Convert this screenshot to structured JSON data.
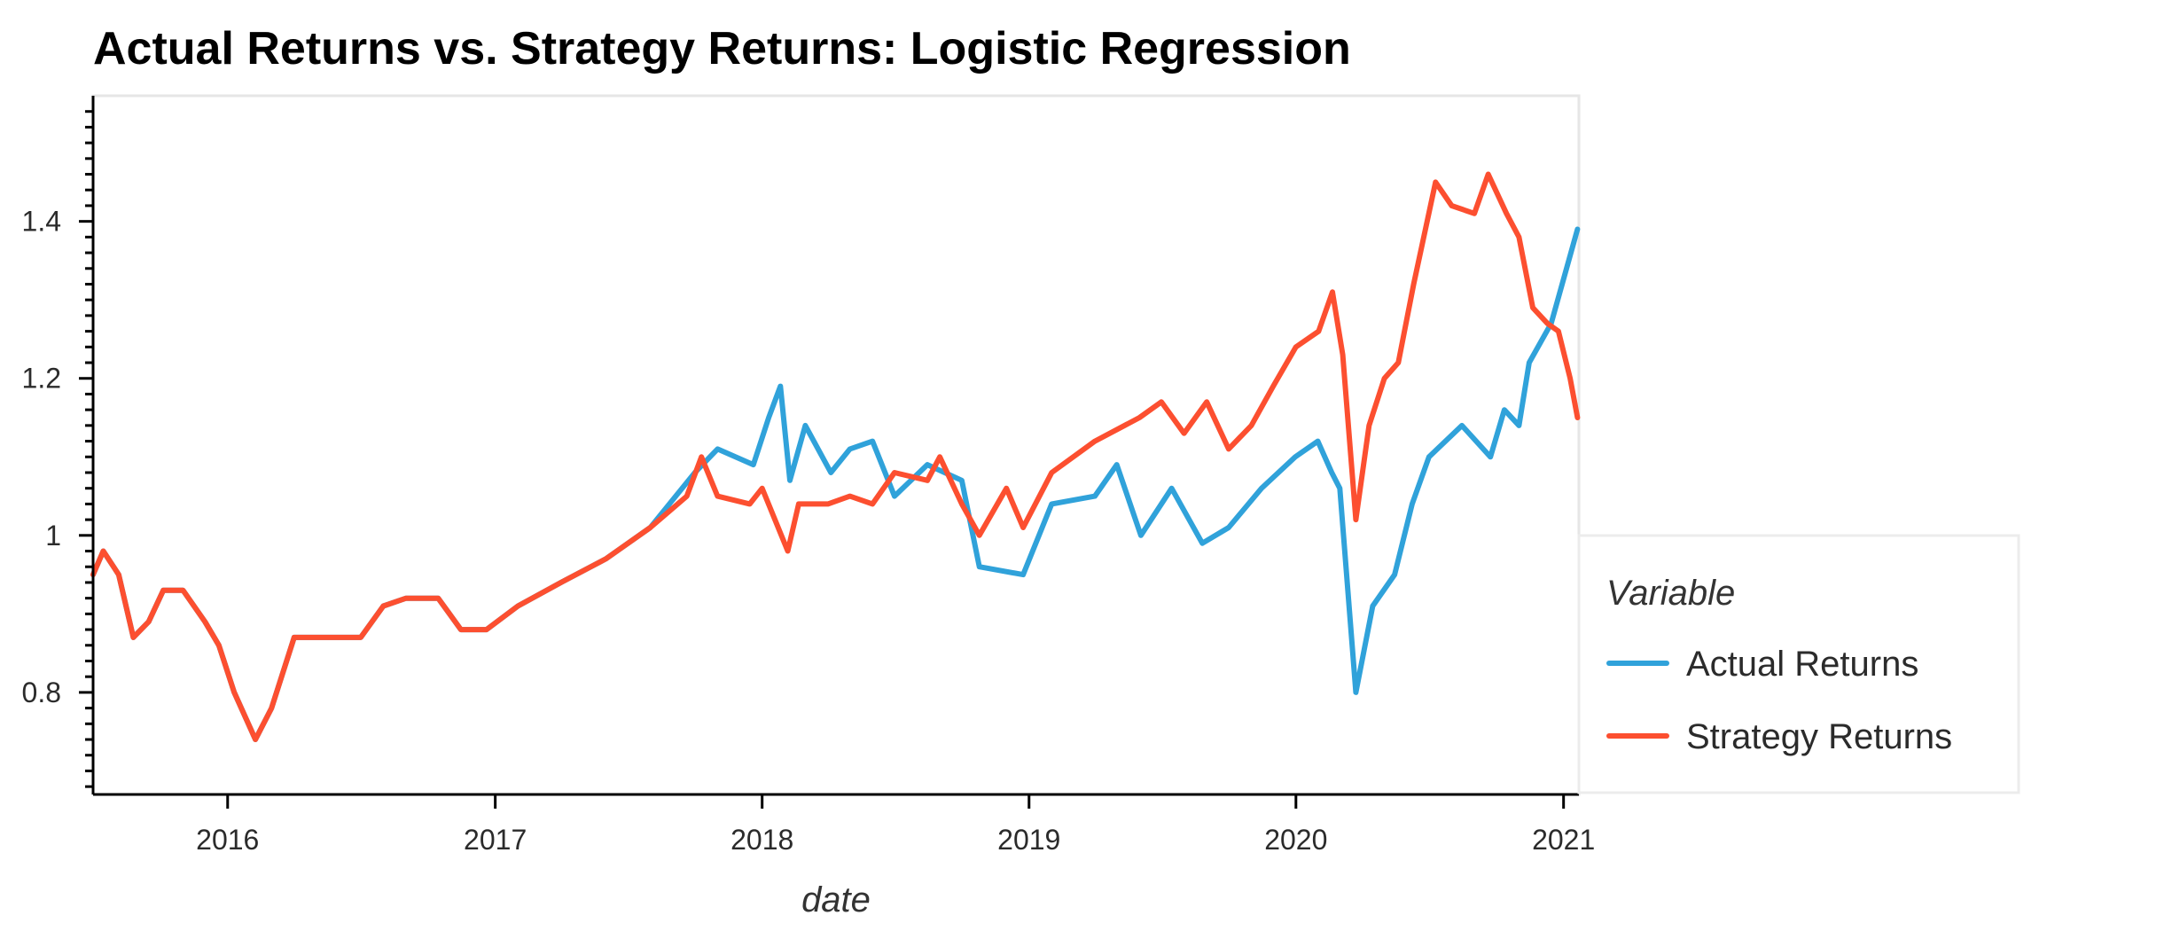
{
  "chart_data": {
    "type": "line",
    "title": "Actual Returns vs. Strategy Returns: Logistic Regression",
    "xlabel": "date",
    "ylabel": "",
    "xlim": [
      "2015-07-01",
      "2021-01-22"
    ],
    "ylim": [
      0.67,
      1.56
    ],
    "x_ticks": [
      {
        "date": "2016-01-01",
        "label": "2016"
      },
      {
        "date": "2017-01-01",
        "label": "2017"
      },
      {
        "date": "2018-01-01",
        "label": "2018"
      },
      {
        "date": "2019-01-01",
        "label": "2019"
      },
      {
        "date": "2020-01-01",
        "label": "2020"
      },
      {
        "date": "2021-01-01",
        "label": "2021"
      }
    ],
    "y_ticks": [
      {
        "value": 0.8,
        "label": "0.8"
      },
      {
        "value": 1.0,
        "label": "1"
      },
      {
        "value": 1.2,
        "label": "1.2"
      },
      {
        "value": 1.4,
        "label": "1.4"
      }
    ],
    "grid": false,
    "legend": {
      "title": "Variable",
      "position": "right"
    },
    "series": [
      {
        "name": "Actual Returns",
        "color": "#30a2da",
        "points": [
          [
            "2015-07-01",
            0.95
          ],
          [
            "2015-07-15",
            0.98
          ],
          [
            "2015-08-05",
            0.95
          ],
          [
            "2015-08-25",
            0.87
          ],
          [
            "2015-09-15",
            0.89
          ],
          [
            "2015-10-05",
            0.93
          ],
          [
            "2015-11-01",
            0.93
          ],
          [
            "2015-12-01",
            0.89
          ],
          [
            "2015-12-20",
            0.86
          ],
          [
            "2016-01-10",
            0.8
          ],
          [
            "2016-02-08",
            0.74
          ],
          [
            "2016-03-01",
            0.78
          ],
          [
            "2016-04-01",
            0.87
          ],
          [
            "2016-07-01",
            0.87
          ],
          [
            "2016-08-01",
            0.91
          ],
          [
            "2016-09-01",
            0.92
          ],
          [
            "2016-10-15",
            0.92
          ],
          [
            "2016-11-15",
            0.88
          ],
          [
            "2016-12-20",
            0.88
          ],
          [
            "2017-02-01",
            0.91
          ],
          [
            "2017-04-01",
            0.94
          ],
          [
            "2017-06-01",
            0.97
          ],
          [
            "2017-08-01",
            1.01
          ],
          [
            "2017-10-01",
            1.08
          ],
          [
            "2017-11-01",
            1.11
          ],
          [
            "2017-12-20",
            1.09
          ],
          [
            "2018-01-10",
            1.15
          ],
          [
            "2018-01-26",
            1.19
          ],
          [
            "2018-02-08",
            1.07
          ],
          [
            "2018-03-01",
            1.14
          ],
          [
            "2018-04-05",
            1.08
          ],
          [
            "2018-05-01",
            1.11
          ],
          [
            "2018-06-01",
            1.12
          ],
          [
            "2018-07-01",
            1.05
          ],
          [
            "2018-08-15",
            1.09
          ],
          [
            "2018-10-01",
            1.07
          ],
          [
            "2018-10-25",
            0.96
          ],
          [
            "2018-12-24",
            0.95
          ],
          [
            "2019-02-01",
            1.04
          ],
          [
            "2019-04-01",
            1.05
          ],
          [
            "2019-05-01",
            1.09
          ],
          [
            "2019-06-03",
            1.0
          ],
          [
            "2019-07-15",
            1.06
          ],
          [
            "2019-08-26",
            0.99
          ],
          [
            "2019-10-01",
            1.01
          ],
          [
            "2019-11-15",
            1.06
          ],
          [
            "2019-12-31",
            1.1
          ],
          [
            "2020-01-31",
            1.12
          ],
          [
            "2020-02-19",
            1.08
          ],
          [
            "2020-03-01",
            1.06
          ],
          [
            "2020-03-23",
            0.8
          ],
          [
            "2020-04-15",
            0.91
          ],
          [
            "2020-05-15",
            0.95
          ],
          [
            "2020-06-08",
            1.04
          ],
          [
            "2020-07-01",
            1.1
          ],
          [
            "2020-08-15",
            1.14
          ],
          [
            "2020-09-23",
            1.1
          ],
          [
            "2020-10-12",
            1.16
          ],
          [
            "2020-11-01",
            1.14
          ],
          [
            "2020-11-15",
            1.22
          ],
          [
            "2020-12-15",
            1.27
          ],
          [
            "2021-01-20",
            1.39
          ]
        ]
      },
      {
        "name": "Strategy Returns",
        "color": "#fc4f30",
        "points": [
          [
            "2015-07-01",
            0.95
          ],
          [
            "2015-07-15",
            0.98
          ],
          [
            "2015-08-05",
            0.95
          ],
          [
            "2015-08-25",
            0.87
          ],
          [
            "2015-09-15",
            0.89
          ],
          [
            "2015-10-05",
            0.93
          ],
          [
            "2015-11-01",
            0.93
          ],
          [
            "2015-12-01",
            0.89
          ],
          [
            "2015-12-20",
            0.86
          ],
          [
            "2016-01-10",
            0.8
          ],
          [
            "2016-02-08",
            0.74
          ],
          [
            "2016-03-01",
            0.78
          ],
          [
            "2016-04-01",
            0.87
          ],
          [
            "2016-07-01",
            0.87
          ],
          [
            "2016-08-01",
            0.91
          ],
          [
            "2016-09-01",
            0.92
          ],
          [
            "2016-10-15",
            0.92
          ],
          [
            "2016-11-15",
            0.88
          ],
          [
            "2016-12-20",
            0.88
          ],
          [
            "2017-02-01",
            0.91
          ],
          [
            "2017-04-01",
            0.94
          ],
          [
            "2017-06-01",
            0.97
          ],
          [
            "2017-08-01",
            1.01
          ],
          [
            "2017-09-20",
            1.05
          ],
          [
            "2017-10-10",
            1.1
          ],
          [
            "2017-11-01",
            1.05
          ],
          [
            "2017-12-15",
            1.04
          ],
          [
            "2018-01-01",
            1.06
          ],
          [
            "2018-02-05",
            0.98
          ],
          [
            "2018-02-20",
            1.04
          ],
          [
            "2018-04-01",
            1.04
          ],
          [
            "2018-05-01",
            1.05
          ],
          [
            "2018-06-01",
            1.04
          ],
          [
            "2018-07-01",
            1.08
          ],
          [
            "2018-08-15",
            1.07
          ],
          [
            "2018-09-01",
            1.1
          ],
          [
            "2018-10-01",
            1.04
          ],
          [
            "2018-10-25",
            1.0
          ],
          [
            "2018-12-01",
            1.06
          ],
          [
            "2018-12-24",
            1.01
          ],
          [
            "2019-02-01",
            1.08
          ],
          [
            "2019-04-01",
            1.12
          ],
          [
            "2019-06-01",
            1.15
          ],
          [
            "2019-07-01",
            1.17
          ],
          [
            "2019-08-01",
            1.13
          ],
          [
            "2019-09-01",
            1.17
          ],
          [
            "2019-10-01",
            1.11
          ],
          [
            "2019-11-01",
            1.14
          ],
          [
            "2019-12-01",
            1.19
          ],
          [
            "2020-01-01",
            1.24
          ],
          [
            "2020-02-01",
            1.26
          ],
          [
            "2020-02-20",
            1.31
          ],
          [
            "2020-03-05",
            1.23
          ],
          [
            "2020-03-23",
            1.02
          ],
          [
            "2020-04-10",
            1.14
          ],
          [
            "2020-05-01",
            1.2
          ],
          [
            "2020-05-20",
            1.22
          ],
          [
            "2020-06-10",
            1.32
          ],
          [
            "2020-07-10",
            1.45
          ],
          [
            "2020-08-01",
            1.42
          ],
          [
            "2020-09-01",
            1.41
          ],
          [
            "2020-09-20",
            1.46
          ],
          [
            "2020-10-15",
            1.41
          ],
          [
            "2020-11-01",
            1.38
          ],
          [
            "2020-11-20",
            1.29
          ],
          [
            "2020-12-10",
            1.27
          ],
          [
            "2020-12-25",
            1.26
          ],
          [
            "2021-01-10",
            1.2
          ],
          [
            "2021-01-20",
            1.15
          ]
        ]
      }
    ]
  }
}
